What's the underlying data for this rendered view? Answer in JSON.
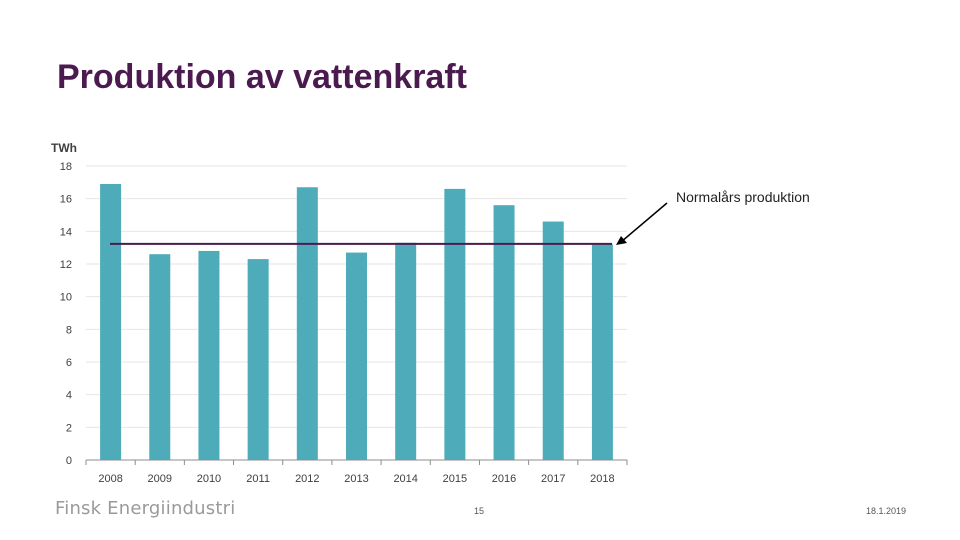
{
  "slide": {
    "title": "Produktion av vattenkraft",
    "logo_text": "Finsk Energiindustri",
    "page_number": "15",
    "date": "18.1.2019"
  },
  "colors": {
    "bar": "#4eacba",
    "reference_line": "#4b1a4f",
    "title": "#4b1a4f",
    "grid": "#e6e6e6",
    "axis_text": "#404040"
  },
  "chart_data": {
    "type": "bar",
    "unit_label": "TWh",
    "categories": [
      "2008",
      "2009",
      "2010",
      "2011",
      "2012",
      "2013",
      "2014",
      "2015",
      "2016",
      "2017",
      "2018"
    ],
    "values": [
      16.9,
      12.6,
      12.8,
      12.3,
      16.7,
      12.7,
      13.3,
      16.6,
      15.6,
      14.6,
      13.2
    ],
    "ylim": [
      0,
      18
    ],
    "yticks": [
      0,
      2,
      4,
      6,
      8,
      10,
      12,
      14,
      16,
      18
    ],
    "grid": true,
    "legend": "none",
    "reference_line": {
      "value": 13.2,
      "label": "Normalårs produktion"
    }
  }
}
